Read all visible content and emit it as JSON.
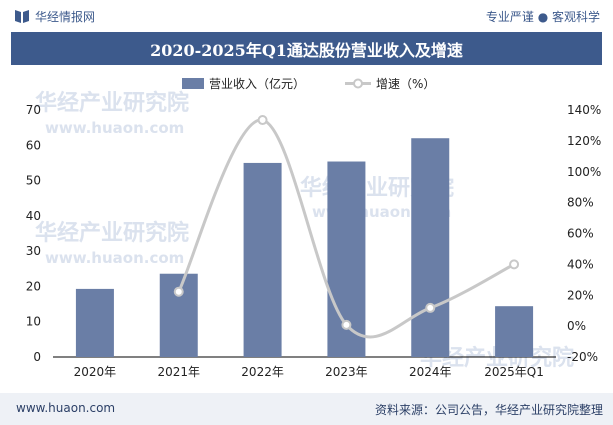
{
  "header": {
    "brand": "华经情报网",
    "tagline": "专业严谨 ● 客观科学"
  },
  "title": "2020-2025年Q1通达股份营业收入及增速",
  "footer": {
    "url": "www.huaon.com",
    "source": "资料来源：公司公告，华经产业研究院整理"
  },
  "watermark": {
    "cn": "华经产业研究院",
    "en": "www.huaon.com"
  },
  "colors": {
    "brand": "#3d5a8c",
    "bar": "#6a7ea6",
    "line": "#c8c8c8"
  },
  "chart_data": {
    "type": "bar",
    "categories": [
      "2020年",
      "2021年",
      "2022年",
      "2023年",
      "2024年",
      "2025年Q1"
    ],
    "series": [
      {
        "name": "营业收入（亿元）",
        "type": "bar",
        "axis": "left",
        "values": [
          19.3,
          23.6,
          55.0,
          55.4,
          62.0,
          14.4
        ]
      },
      {
        "name": "增速（%）",
        "type": "line",
        "axis": "right",
        "smooth": true,
        "values": [
          null,
          22.3,
          133.5,
          0.8,
          11.8,
          40.0
        ]
      }
    ],
    "y_left": {
      "lim": [
        0,
        70
      ],
      "ticks": [
        "0",
        "10",
        "20",
        "30",
        "40",
        "50",
        "60",
        "70"
      ]
    },
    "y_right": {
      "lim": [
        -20,
        140
      ],
      "ticks": [
        "-20%",
        "0%",
        "20%",
        "40%",
        "60%",
        "80%",
        "100%",
        "120%",
        "140%"
      ]
    },
    "legend": "top-center",
    "grid": false
  }
}
